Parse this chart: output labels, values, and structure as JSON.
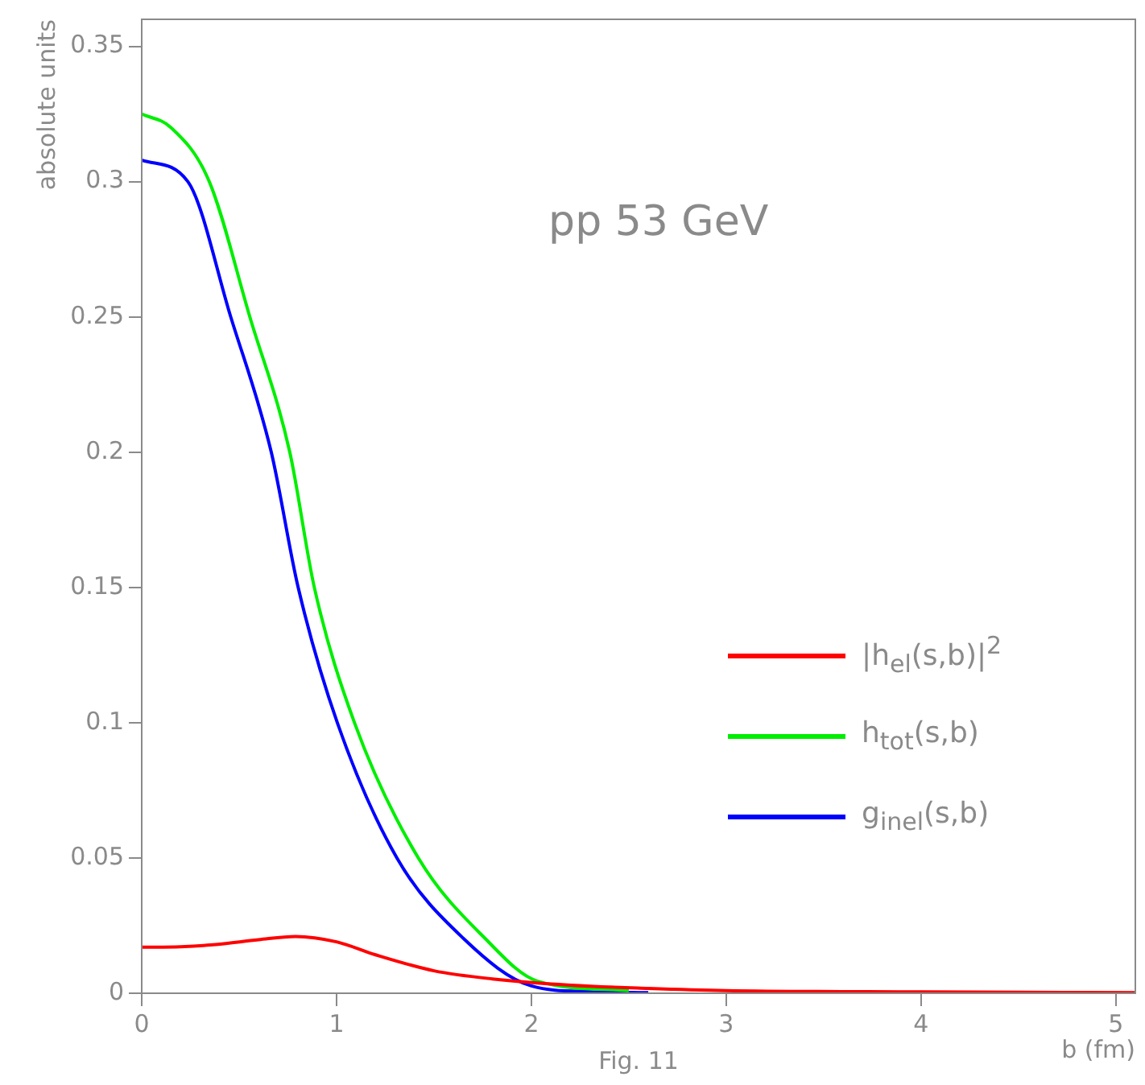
{
  "chart_data": {
    "type": "line",
    "title": "pp 53 GeV",
    "xlabel": "b (fm)",
    "ylabel": "absolute units",
    "annotations": [
      "Fig. 11"
    ],
    "xlim": [
      0,
      5.1
    ],
    "xticks": [
      0,
      1,
      2,
      3,
      4,
      5
    ],
    "ylim": [
      0,
      0.36
    ],
    "yticks": [
      0,
      0.05,
      0.1,
      0.15,
      0.2,
      0.25,
      0.3,
      0.35
    ],
    "grid": false,
    "legend": "right",
    "marker": "none",
    "line_style": "solid",
    "series": [
      {
        "name": "|h$_{el}$(s,b)|$^{2}$",
        "color": "#ff0000",
        "x": [
          0,
          0.2,
          0.38,
          0.6,
          0.79,
          1.0,
          1.2,
          1.5,
          1.8,
          2.2,
          2.6,
          3,
          4,
          5.1
        ],
        "values": [
          0.017,
          0.0172,
          0.018,
          0.0198,
          0.021,
          0.019,
          0.0142,
          0.0083,
          0.0053,
          0.003,
          0.0018,
          0.001,
          0.0005,
          0.0002
        ]
      },
      {
        "name": "h$_{tot}$(s,b)",
        "color": "#00ee00",
        "x": [
          0,
          0.15,
          0.347,
          0.555,
          0.76,
          0.886,
          1.092,
          1.42,
          1.766,
          2.03,
          2.5
        ],
        "values": [
          0.325,
          0.32,
          0.3,
          0.25,
          0.2,
          0.15,
          0.1,
          0.05,
          0.02,
          0.0045,
          0.001
        ]
      },
      {
        "name": "g$_{inel}$(s,b)",
        "color": "#0000ff",
        "x": [
          0,
          0.237,
          0.457,
          0.665,
          0.803,
          1.004,
          1.31,
          1.655,
          2.0,
          2.3,
          2.6
        ],
        "values": [
          0.308,
          0.3,
          0.25,
          0.2,
          0.15,
          0.1,
          0.05,
          0.02,
          0.0027,
          0.0006,
          0.0002
        ]
      }
    ]
  }
}
